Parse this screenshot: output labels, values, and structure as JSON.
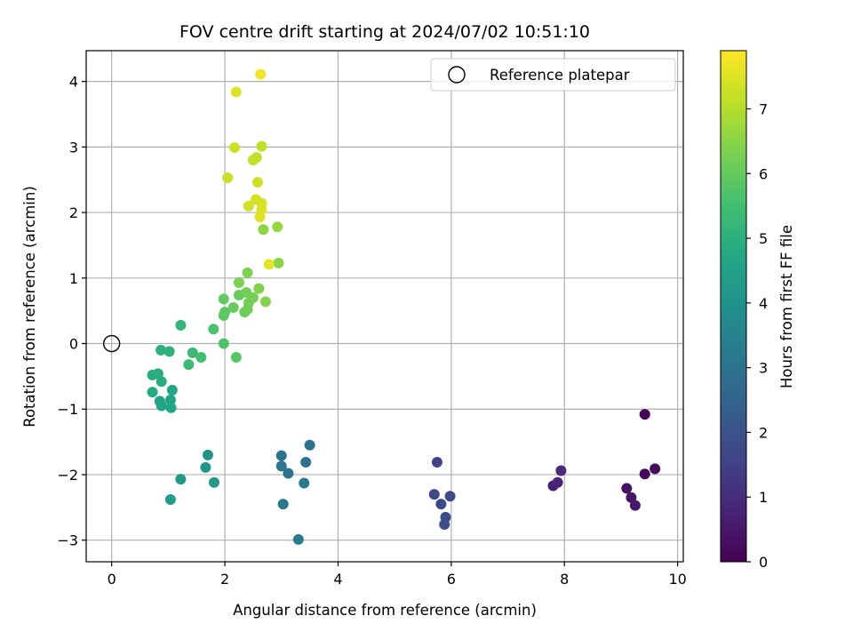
{
  "chart_data": {
    "type": "scatter",
    "title": "FOV centre drift starting at 2024/07/02 10:51:10",
    "xlabel": "Angular distance from reference (arcmin)",
    "ylabel": "Rotation from reference (arcmin)",
    "xlim": [
      -0.45,
      10.1
    ],
    "ylim": [
      -3.33,
      4.47
    ],
    "xticks": [
      0,
      2,
      4,
      6,
      8,
      10
    ],
    "yticks": [
      -3,
      -2,
      -1,
      0,
      1,
      2,
      3,
      4
    ],
    "grid": true,
    "legend": {
      "location": "top-right",
      "entries": [
        {
          "label": "Reference platepar",
          "marker": "open-circle"
        }
      ]
    },
    "reference_point": {
      "x": 0,
      "y": 0
    },
    "colorbar": {
      "label": "Hours from first FF file",
      "colormap": "viridis",
      "range": [
        0,
        7.9
      ],
      "ticks": [
        0,
        1,
        2,
        3,
        4,
        5,
        6,
        7
      ]
    },
    "series": [
      {
        "marker": "filled-circle",
        "points": [
          {
            "x": 9.42,
            "y": -1.08,
            "h": 0.05
          },
          {
            "x": 9.42,
            "y": -1.99,
            "h": 0.15
          },
          {
            "x": 9.6,
            "y": -1.91,
            "h": 0.25
          },
          {
            "x": 9.1,
            "y": -2.21,
            "h": 0.35
          },
          {
            "x": 9.18,
            "y": -2.35,
            "h": 0.45
          },
          {
            "x": 9.25,
            "y": -2.47,
            "h": 0.55
          },
          {
            "x": 7.8,
            "y": -2.17,
            "h": 0.7
          },
          {
            "x": 7.88,
            "y": -2.12,
            "h": 0.8
          },
          {
            "x": 7.94,
            "y": -1.94,
            "h": 0.95
          },
          {
            "x": 5.75,
            "y": -1.81,
            "h": 1.6
          },
          {
            "x": 5.7,
            "y": -2.3,
            "h": 1.7
          },
          {
            "x": 5.82,
            "y": -2.45,
            "h": 1.75
          },
          {
            "x": 5.98,
            "y": -2.33,
            "h": 1.8
          },
          {
            "x": 5.9,
            "y": -2.65,
            "h": 1.85
          },
          {
            "x": 5.88,
            "y": -2.76,
            "h": 1.9
          },
          {
            "x": 3.5,
            "y": -1.55,
            "h": 2.9
          },
          {
            "x": 3.43,
            "y": -1.81,
            "h": 2.95
          },
          {
            "x": 3.0,
            "y": -1.71,
            "h": 3.0
          },
          {
            "x": 3.0,
            "y": -1.87,
            "h": 3.05
          },
          {
            "x": 3.12,
            "y": -1.98,
            "h": 3.1
          },
          {
            "x": 3.4,
            "y": -2.13,
            "h": 3.15
          },
          {
            "x": 3.03,
            "y": -2.45,
            "h": 3.2
          },
          {
            "x": 3.3,
            "y": -2.99,
            "h": 3.25
          },
          {
            "x": 1.7,
            "y": -1.7,
            "h": 4.1
          },
          {
            "x": 1.66,
            "y": -1.89,
            "h": 4.15
          },
          {
            "x": 1.81,
            "y": -2.12,
            "h": 4.2
          },
          {
            "x": 1.22,
            "y": -2.07,
            "h": 4.3
          },
          {
            "x": 1.04,
            "y": -2.38,
            "h": 4.35
          },
          {
            "x": 0.88,
            "y": -0.95,
            "h": 4.5
          },
          {
            "x": 1.04,
            "y": -0.86,
            "h": 4.6
          },
          {
            "x": 0.85,
            "y": -0.88,
            "h": 4.65
          },
          {
            "x": 1.05,
            "y": -0.98,
            "h": 4.7
          },
          {
            "x": 1.07,
            "y": -0.71,
            "h": 4.75
          },
          {
            "x": 0.72,
            "y": -0.74,
            "h": 4.8
          },
          {
            "x": 0.88,
            "y": -0.58,
            "h": 4.85
          },
          {
            "x": 0.72,
            "y": -0.48,
            "h": 4.9
          },
          {
            "x": 0.82,
            "y": -0.46,
            "h": 4.95
          },
          {
            "x": 0.87,
            "y": -0.1,
            "h": 5.0
          },
          {
            "x": 1.02,
            "y": -0.12,
            "h": 5.05
          },
          {
            "x": 1.22,
            "y": 0.28,
            "h": 5.15
          },
          {
            "x": 1.43,
            "y": -0.14,
            "h": 5.3
          },
          {
            "x": 1.36,
            "y": -0.32,
            "h": 5.35
          },
          {
            "x": 1.58,
            "y": -0.21,
            "h": 5.5
          },
          {
            "x": 1.8,
            "y": 0.22,
            "h": 5.6
          },
          {
            "x": 1.98,
            "y": 0.0,
            "h": 5.7
          },
          {
            "x": 2.2,
            "y": -0.21,
            "h": 5.8
          },
          {
            "x": 1.98,
            "y": 0.43,
            "h": 5.85
          },
          {
            "x": 2.0,
            "y": 0.48,
            "h": 5.9
          },
          {
            "x": 1.98,
            "y": 0.68,
            "h": 5.95
          },
          {
            "x": 2.15,
            "y": 0.55,
            "h": 6.0
          },
          {
            "x": 2.25,
            "y": 0.74,
            "h": 6.05
          },
          {
            "x": 2.35,
            "y": 0.48,
            "h": 6.1
          },
          {
            "x": 2.4,
            "y": 0.52,
            "h": 6.15
          },
          {
            "x": 2.42,
            "y": 0.62,
            "h": 6.2
          },
          {
            "x": 2.38,
            "y": 0.78,
            "h": 6.2
          },
          {
            "x": 2.5,
            "y": 0.7,
            "h": 6.25
          },
          {
            "x": 2.25,
            "y": 0.93,
            "h": 6.3
          },
          {
            "x": 2.4,
            "y": 1.08,
            "h": 6.35
          },
          {
            "x": 2.6,
            "y": 0.84,
            "h": 6.4
          },
          {
            "x": 2.72,
            "y": 0.64,
            "h": 6.45
          },
          {
            "x": 2.95,
            "y": 1.23,
            "h": 6.5
          },
          {
            "x": 2.68,
            "y": 1.74,
            "h": 6.55
          },
          {
            "x": 2.93,
            "y": 1.78,
            "h": 6.65
          },
          {
            "x": 2.78,
            "y": 1.21,
            "h": 7.6
          },
          {
            "x": 2.62,
            "y": 1.93,
            "h": 7.55
          },
          {
            "x": 2.65,
            "y": 2.04,
            "h": 7.5
          },
          {
            "x": 2.65,
            "y": 2.14,
            "h": 7.45
          },
          {
            "x": 2.55,
            "y": 2.2,
            "h": 7.4
          },
          {
            "x": 2.42,
            "y": 2.1,
            "h": 7.35
          },
          {
            "x": 2.58,
            "y": 2.46,
            "h": 7.3
          },
          {
            "x": 2.05,
            "y": 2.53,
            "h": 7.25
          },
          {
            "x": 2.5,
            "y": 2.8,
            "h": 7.2
          },
          {
            "x": 2.56,
            "y": 2.84,
            "h": 7.15
          },
          {
            "x": 2.65,
            "y": 3.01,
            "h": 7.1
          },
          {
            "x": 2.17,
            "y": 2.99,
            "h": 7.3
          },
          {
            "x": 2.2,
            "y": 3.84,
            "h": 7.5
          },
          {
            "x": 2.63,
            "y": 4.11,
            "h": 7.7
          }
        ]
      }
    ]
  }
}
